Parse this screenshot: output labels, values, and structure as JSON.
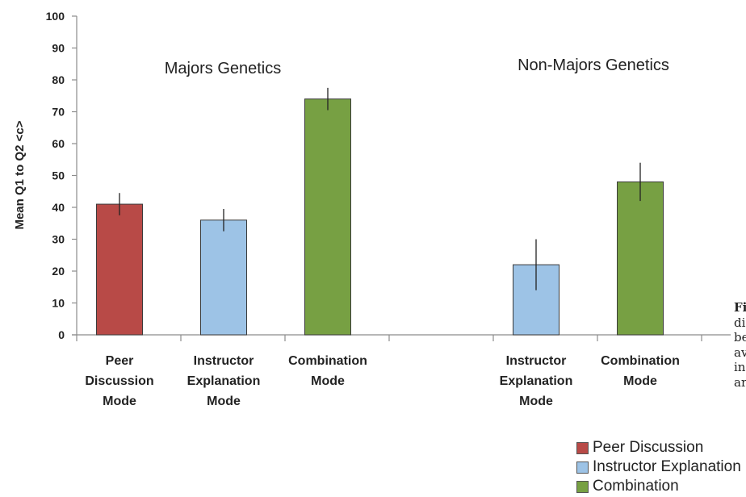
{
  "chart_data": {
    "type": "bar",
    "ylabel": "Mean Q1 to Q2 <c>",
    "ylim": [
      0,
      100
    ],
    "yticks": [
      0,
      10,
      20,
      30,
      40,
      50,
      60,
      70,
      80,
      90,
      100
    ],
    "grid": false,
    "legend_position": "bottom-right",
    "groups": [
      {
        "title": "Majors Genetics",
        "bars": [
          {
            "label": [
              "Peer",
              "Discussion",
              "Mode"
            ],
            "series": "Peer Discussion",
            "value": 41,
            "error": 3.5
          },
          {
            "label": [
              "Instructor",
              "Explanation",
              "Mode"
            ],
            "series": "Instructor Explanation",
            "value": 36,
            "error": 3.5
          },
          {
            "label": [
              "Combination",
              "Mode"
            ],
            "series": "Combination",
            "value": 74,
            "error": 3.5
          }
        ]
      },
      {
        "title": "Non-Majors Genetics",
        "bars": [
          {
            "label": [
              "Instructor",
              "Explanation",
              "Mode"
            ],
            "series": "Instructor Explanation",
            "value": 22,
            "error": 8
          },
          {
            "label": [
              "Combination",
              "Mode"
            ],
            "series": "Combination",
            "value": 48,
            "error": 6
          }
        ]
      }
    ],
    "legend": [
      {
        "name": "Peer Discussion",
        "color": "#b84a47"
      },
      {
        "name": "Instructor Explanation",
        "color": "#9dc3e6"
      },
      {
        "name": "Combination",
        "color": "#77a043"
      }
    ]
  },
  "side_caption": {
    "bold": "Fi",
    "lines": [
      "di",
      "be",
      "av",
      "in",
      "ar"
    ]
  }
}
